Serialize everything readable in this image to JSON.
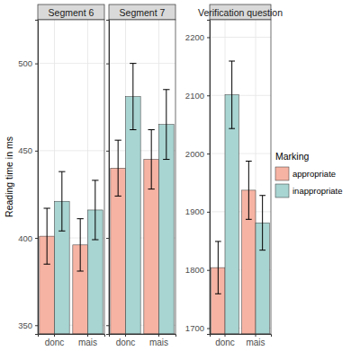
{
  "chart_data": {
    "type": "bar",
    "y_label": "Reading time in ms",
    "legend_title": "Marking",
    "legend": "right",
    "grid": true,
    "categories": [
      "donc",
      "mais"
    ],
    "series": [
      {
        "name": "appropriate",
        "color": "#f6b3a3"
      },
      {
        "name": "inappropriate",
        "color": "#a8d4d1"
      }
    ],
    "panels": [
      {
        "title": "Segment 6",
        "ylim": [
          345,
          525
        ],
        "yticks": [
          350,
          400,
          450,
          500
        ],
        "series": [
          {
            "values": [
              401,
              396
            ],
            "errors": [
              16,
              15
            ]
          },
          {
            "values": [
              421,
              416
            ],
            "errors": [
              17,
              17
            ]
          }
        ]
      },
      {
        "title": "Segment 7",
        "ylim": [
          345,
          525
        ],
        "yticks": [
          350,
          400,
          450,
          500
        ],
        "tick_labels": false,
        "series": [
          {
            "values": [
              440,
              445
            ],
            "errors": [
              16,
              17
            ]
          },
          {
            "values": [
              481,
              465
            ],
            "errors": [
              19,
              20
            ]
          }
        ]
      },
      {
        "title": "Verification question",
        "ylim": [
          1690,
          2230
        ],
        "yticks": [
          1700,
          1800,
          1900,
          2000,
          2100,
          2200
        ],
        "series": [
          {
            "values": [
              1804,
              1937
            ],
            "errors": [
              45,
              50
            ]
          },
          {
            "values": [
              2101,
              1881
            ],
            "errors": [
              58,
              47
            ]
          }
        ]
      }
    ]
  }
}
